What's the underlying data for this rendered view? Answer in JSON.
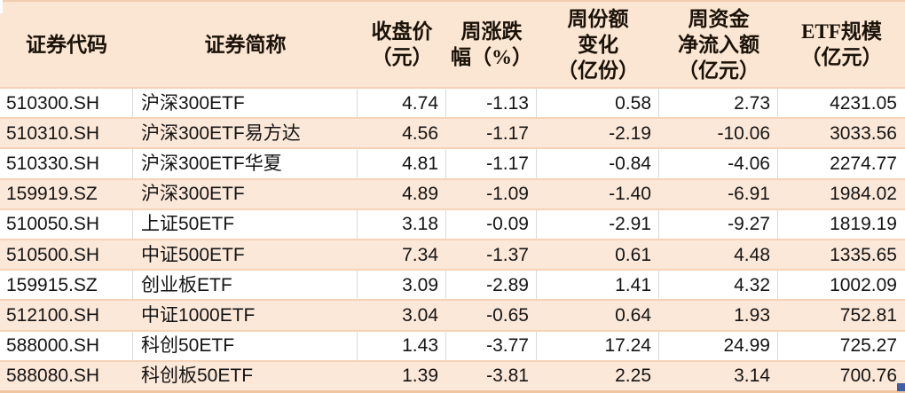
{
  "chart_data": {
    "type": "table",
    "title": "",
    "columns": [
      {
        "id": "code",
        "label": "证券代码"
      },
      {
        "id": "name",
        "label": "证券简称"
      },
      {
        "id": "close",
        "label": "收盘价\n（元）"
      },
      {
        "id": "weekly_change_pct",
        "label": "周涨跌\n幅（%）"
      },
      {
        "id": "share_change",
        "label": "周份额\n变化\n（亿份）"
      },
      {
        "id": "net_inflow",
        "label": "周资金\n净流入额\n（亿元）"
      },
      {
        "id": "etf_scale",
        "label": "ETF规模\n（亿元）"
      }
    ],
    "rows": [
      [
        "510300.SH",
        "沪深300ETF",
        "4.74",
        "-1.13",
        "0.58",
        "2.73",
        "4231.05"
      ],
      [
        "510310.SH",
        "沪深300ETF易方达",
        "4.56",
        "-1.17",
        "-2.19",
        "-10.06",
        "3033.56"
      ],
      [
        "510330.SH",
        "沪深300ETF华夏",
        "4.81",
        "-1.17",
        "-0.84",
        "-4.06",
        "2274.77"
      ],
      [
        "159919.SZ",
        "沪深300ETF",
        "4.89",
        "-1.09",
        "-1.40",
        "-6.91",
        "1984.02"
      ],
      [
        "510050.SH",
        "上证50ETF",
        "3.18",
        "-0.09",
        "-2.91",
        "-9.27",
        "1819.19"
      ],
      [
        "510500.SH",
        "中证500ETF",
        "7.34",
        "-1.37",
        "0.61",
        "4.48",
        "1335.65"
      ],
      [
        "159915.SZ",
        "创业板ETF",
        "3.09",
        "-2.89",
        "1.41",
        "4.32",
        "1002.09"
      ],
      [
        "512100.SH",
        "中证1000ETF",
        "3.04",
        "-0.65",
        "0.64",
        "1.93",
        "752.81"
      ],
      [
        "588000.SH",
        "科创50ETF",
        "1.43",
        "-3.77",
        "17.24",
        "24.99",
        "725.27"
      ],
      [
        "588080.SH",
        "科创板50ETF",
        "1.39",
        "-3.81",
        "2.25",
        "3.14",
        "700.76"
      ]
    ],
    "layout_hints": {
      "header_lines": "multi-line headers, centered",
      "row_striping": "odd rows white, even rows peach",
      "numeric_alignment": "right"
    }
  },
  "colors": {
    "header_bg": "#fbe5d3",
    "row_alt_bg": "#fce8d8",
    "row_border": "#f6d3b8",
    "gridline": "#d9d9d9",
    "bottom_border": "#f0c5a2",
    "selection_handle": "#3f5ea8",
    "text": "#141414"
  }
}
